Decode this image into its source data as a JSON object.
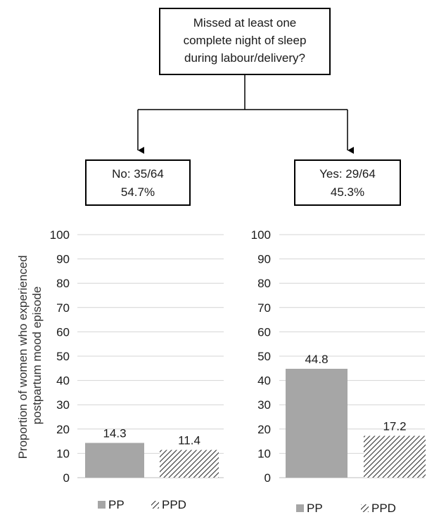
{
  "flow": {
    "question_lines": [
      "Missed at least one",
      "complete night of sleep",
      "during labour/delivery?"
    ],
    "no_lines": [
      "No: 35/64",
      "54.7%"
    ],
    "yes_lines": [
      "Yes: 29/64",
      "45.3%"
    ]
  },
  "colors": {
    "pp": "#a6a6a6",
    "ppd_hatch": "#333333",
    "grid": "#d4d4d4"
  },
  "chart_data": [
    {
      "type": "bar",
      "group": "No",
      "ylabel": "Proportion of women who experienced postpartum mood episode",
      "ylim": [
        0,
        100
      ],
      "yticks": [
        0,
        10,
        20,
        30,
        40,
        50,
        60,
        70,
        80,
        90,
        100
      ],
      "grid": true,
      "categories": [
        "PP",
        "PPD"
      ],
      "values": [
        14.3,
        11.4
      ],
      "data_labels": [
        "14.3",
        "11.4"
      ],
      "legend": [
        "PP",
        "PPD"
      ],
      "legend_position": "bottom"
    },
    {
      "type": "bar",
      "group": "Yes",
      "ylabel": "",
      "ylim": [
        0,
        100
      ],
      "yticks": [
        0,
        10,
        20,
        30,
        40,
        50,
        60,
        70,
        80,
        90,
        100
      ],
      "grid": true,
      "categories": [
        "PP",
        "PPD"
      ],
      "values": [
        44.8,
        17.2
      ],
      "data_labels": [
        "44.8",
        "17.2"
      ],
      "legend": [
        "PP",
        "PPD"
      ],
      "legend_position": "bottom"
    }
  ]
}
